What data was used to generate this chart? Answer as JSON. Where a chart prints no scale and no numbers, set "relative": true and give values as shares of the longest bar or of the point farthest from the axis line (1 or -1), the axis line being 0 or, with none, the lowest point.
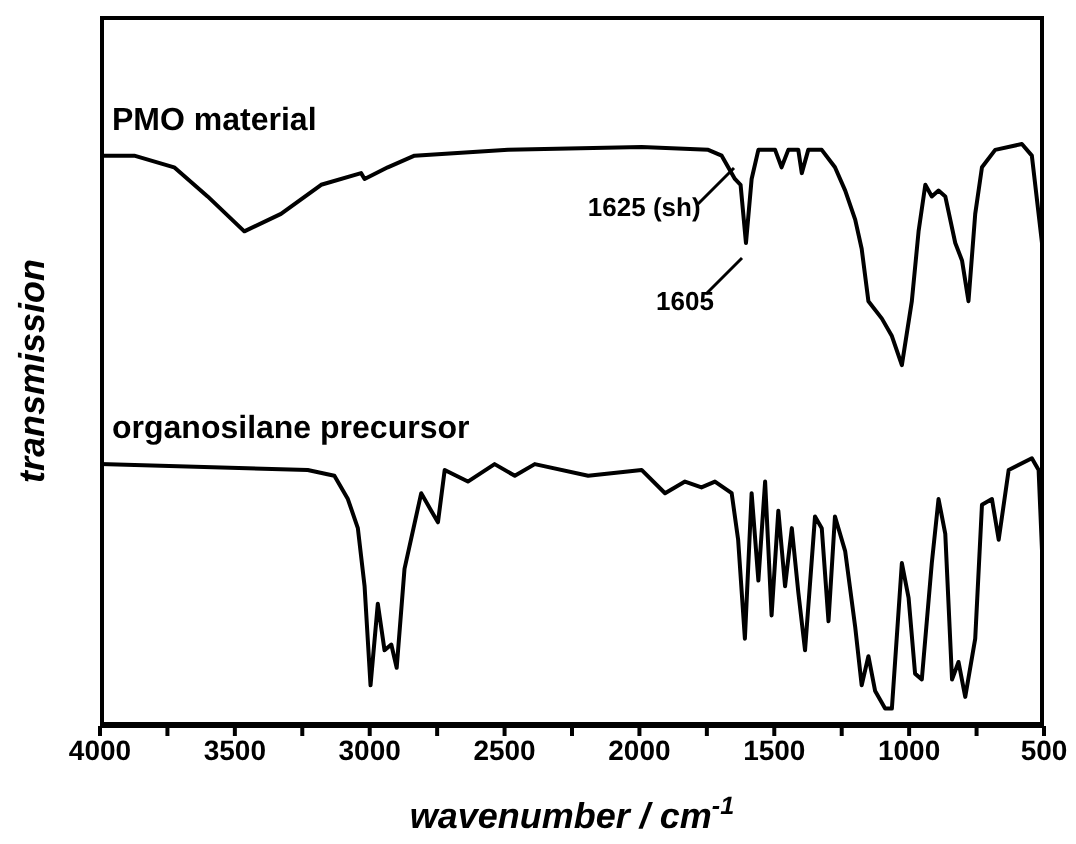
{
  "chart_data": {
    "type": "line",
    "relative": true,
    "xlabel": "wavenumber / cm$^{-1}$",
    "ylabel": "transmission",
    "xlim": [
      4000,
      500
    ],
    "xticks": [
      4000,
      {
        "value": 3750,
        "label": null
      },
      3500,
      {
        "value": 3250,
        "label": null
      },
      3000,
      {
        "value": 2750,
        "label": null
      },
      2500,
      {
        "value": 2250,
        "label": null
      },
      2000,
      {
        "value": 1750,
        "label": null
      },
      1500,
      {
        "value": 1250,
        "label": null
      },
      1000,
      {
        "value": 750,
        "label": null
      },
      500
    ],
    "annotations": [
      {
        "text": "1625 (sh)",
        "x": 1625,
        "y": 0.93
      },
      {
        "text": "1605",
        "x": 1605,
        "y": 0.83
      }
    ],
    "series": [
      {
        "name": "PMO material",
        "color": "#000000",
        "x": [
          4000,
          3873,
          3725,
          3601,
          3465,
          3329,
          3180,
          3032,
          3019,
          2933,
          2834,
          2487,
          1992,
          1745,
          1695,
          1646,
          1625,
          1605,
          1584,
          1559,
          1497,
          1473,
          1448,
          1411,
          1398,
          1374,
          1324,
          1275,
          1237,
          1200,
          1176,
          1151,
          1101,
          1064,
          1027,
          990,
          965,
          940,
          916,
          891,
          866,
          829,
          804,
          780,
          755,
          730,
          681,
          582,
          545,
          500
        ],
        "values": [
          0.98,
          0.98,
          0.96,
          0.91,
          0.85,
          0.88,
          0.93,
          0.95,
          0.94,
          0.96,
          0.98,
          0.99,
          0.995,
          0.99,
          0.98,
          0.94,
          0.93,
          0.83,
          0.94,
          0.99,
          0.99,
          0.96,
          0.99,
          0.99,
          0.95,
          0.99,
          0.99,
          0.96,
          0.92,
          0.87,
          0.82,
          0.73,
          0.7,
          0.67,
          0.62,
          0.73,
          0.85,
          0.93,
          0.91,
          0.92,
          0.91,
          0.83,
          0.8,
          0.73,
          0.88,
          0.96,
          0.99,
          1,
          0.98,
          0.8
        ]
      },
      {
        "name": "organosilane precursor",
        "color": "#000000",
        "x": [
          4000,
          3230,
          3131,
          3081,
          3044,
          3019,
          2997,
          2970,
          2945,
          2920,
          2900,
          2871,
          2809,
          2772,
          2747,
          2722,
          2636,
          2537,
          2462,
          2388,
          2190,
          1992,
          1905,
          1831,
          1770,
          1720,
          1658,
          1634,
          1609,
          1584,
          1559,
          1534,
          1510,
          1485,
          1460,
          1435,
          1411,
          1386,
          1349,
          1324,
          1299,
          1275,
          1237,
          1200,
          1176,
          1151,
          1126,
          1089,
          1064,
          1027,
          1002,
          978,
          953,
          916,
          891,
          866,
          841,
          817,
          792,
          755,
          730,
          693,
          668,
          631,
          545,
          520,
          500
        ],
        "values": [
          0.45,
          0.44,
          0.43,
          0.39,
          0.34,
          0.24,
          0.07,
          0.21,
          0.13,
          0.14,
          0.1,
          0.27,
          0.4,
          0.37,
          0.35,
          0.44,
          0.42,
          0.45,
          0.43,
          0.45,
          0.43,
          0.44,
          0.4,
          0.42,
          0.41,
          0.42,
          0.4,
          0.32,
          0.15,
          0.4,
          0.25,
          0.42,
          0.19,
          0.37,
          0.24,
          0.34,
          0.23,
          0.13,
          0.36,
          0.34,
          0.18,
          0.36,
          0.3,
          0.17,
          0.07,
          0.12,
          0.06,
          0.03,
          0.03,
          0.28,
          0.22,
          0.09,
          0.08,
          0.28,
          0.39,
          0.33,
          0.08,
          0.11,
          0.05,
          0.15,
          0.38,
          0.39,
          0.32,
          0.44,
          0.46,
          0.44,
          0.22
        ]
      }
    ]
  }
}
